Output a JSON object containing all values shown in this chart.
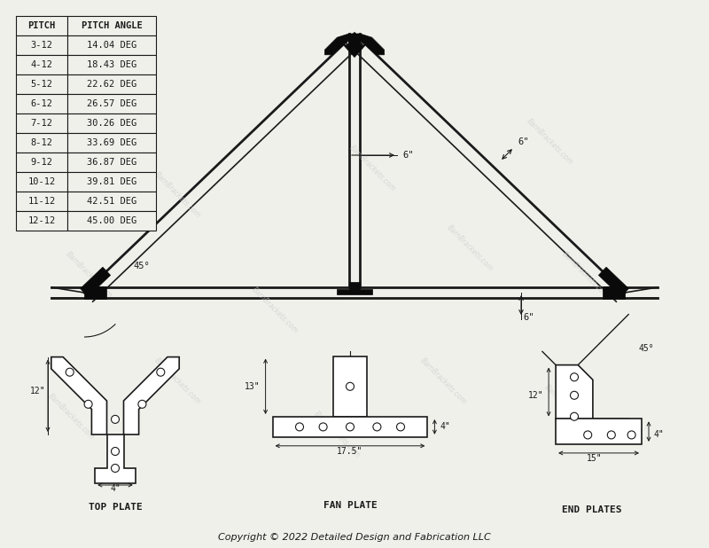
{
  "bg_color": "#f0f0eb",
  "line_color": "#1a1a1a",
  "plate_color": "#0a0a0a",
  "watermark_color": "#c8c8c8",
  "copyright_text": "Copyright © 2022 Detailed Design and Fabrication LLC",
  "table_pitches": [
    "3-12",
    "4-12",
    "5-12",
    "6-12",
    "7-12",
    "8-12",
    "9-12",
    "10-12",
    "11-12",
    "12-12"
  ],
  "table_angles": [
    "14.04 DEG",
    "18.43 DEG",
    "22.62 DEG",
    "26.57 DEG",
    "30.26 DEG",
    "33.69 DEG",
    "36.87 DEG",
    "39.81 DEG",
    "42.51 DEG",
    "45.00 DEG"
  ],
  "dim_6_inch": "6\"",
  "dim_45deg": "45°",
  "label_top_plate": "TOP PLATE",
  "label_fan_plate": "FAN PLATE",
  "label_end_plates": "END PLATES",
  "dim_top_12": "12\"",
  "dim_top_4": "4\"",
  "dim_fan_13": "13\"",
  "dim_fan_4": "4\"",
  "dim_fan_175": "17.5\"",
  "dim_end_12": "12\"",
  "dim_end_45": "45°",
  "dim_end_4": "4\"",
  "dim_end_15": "15\""
}
